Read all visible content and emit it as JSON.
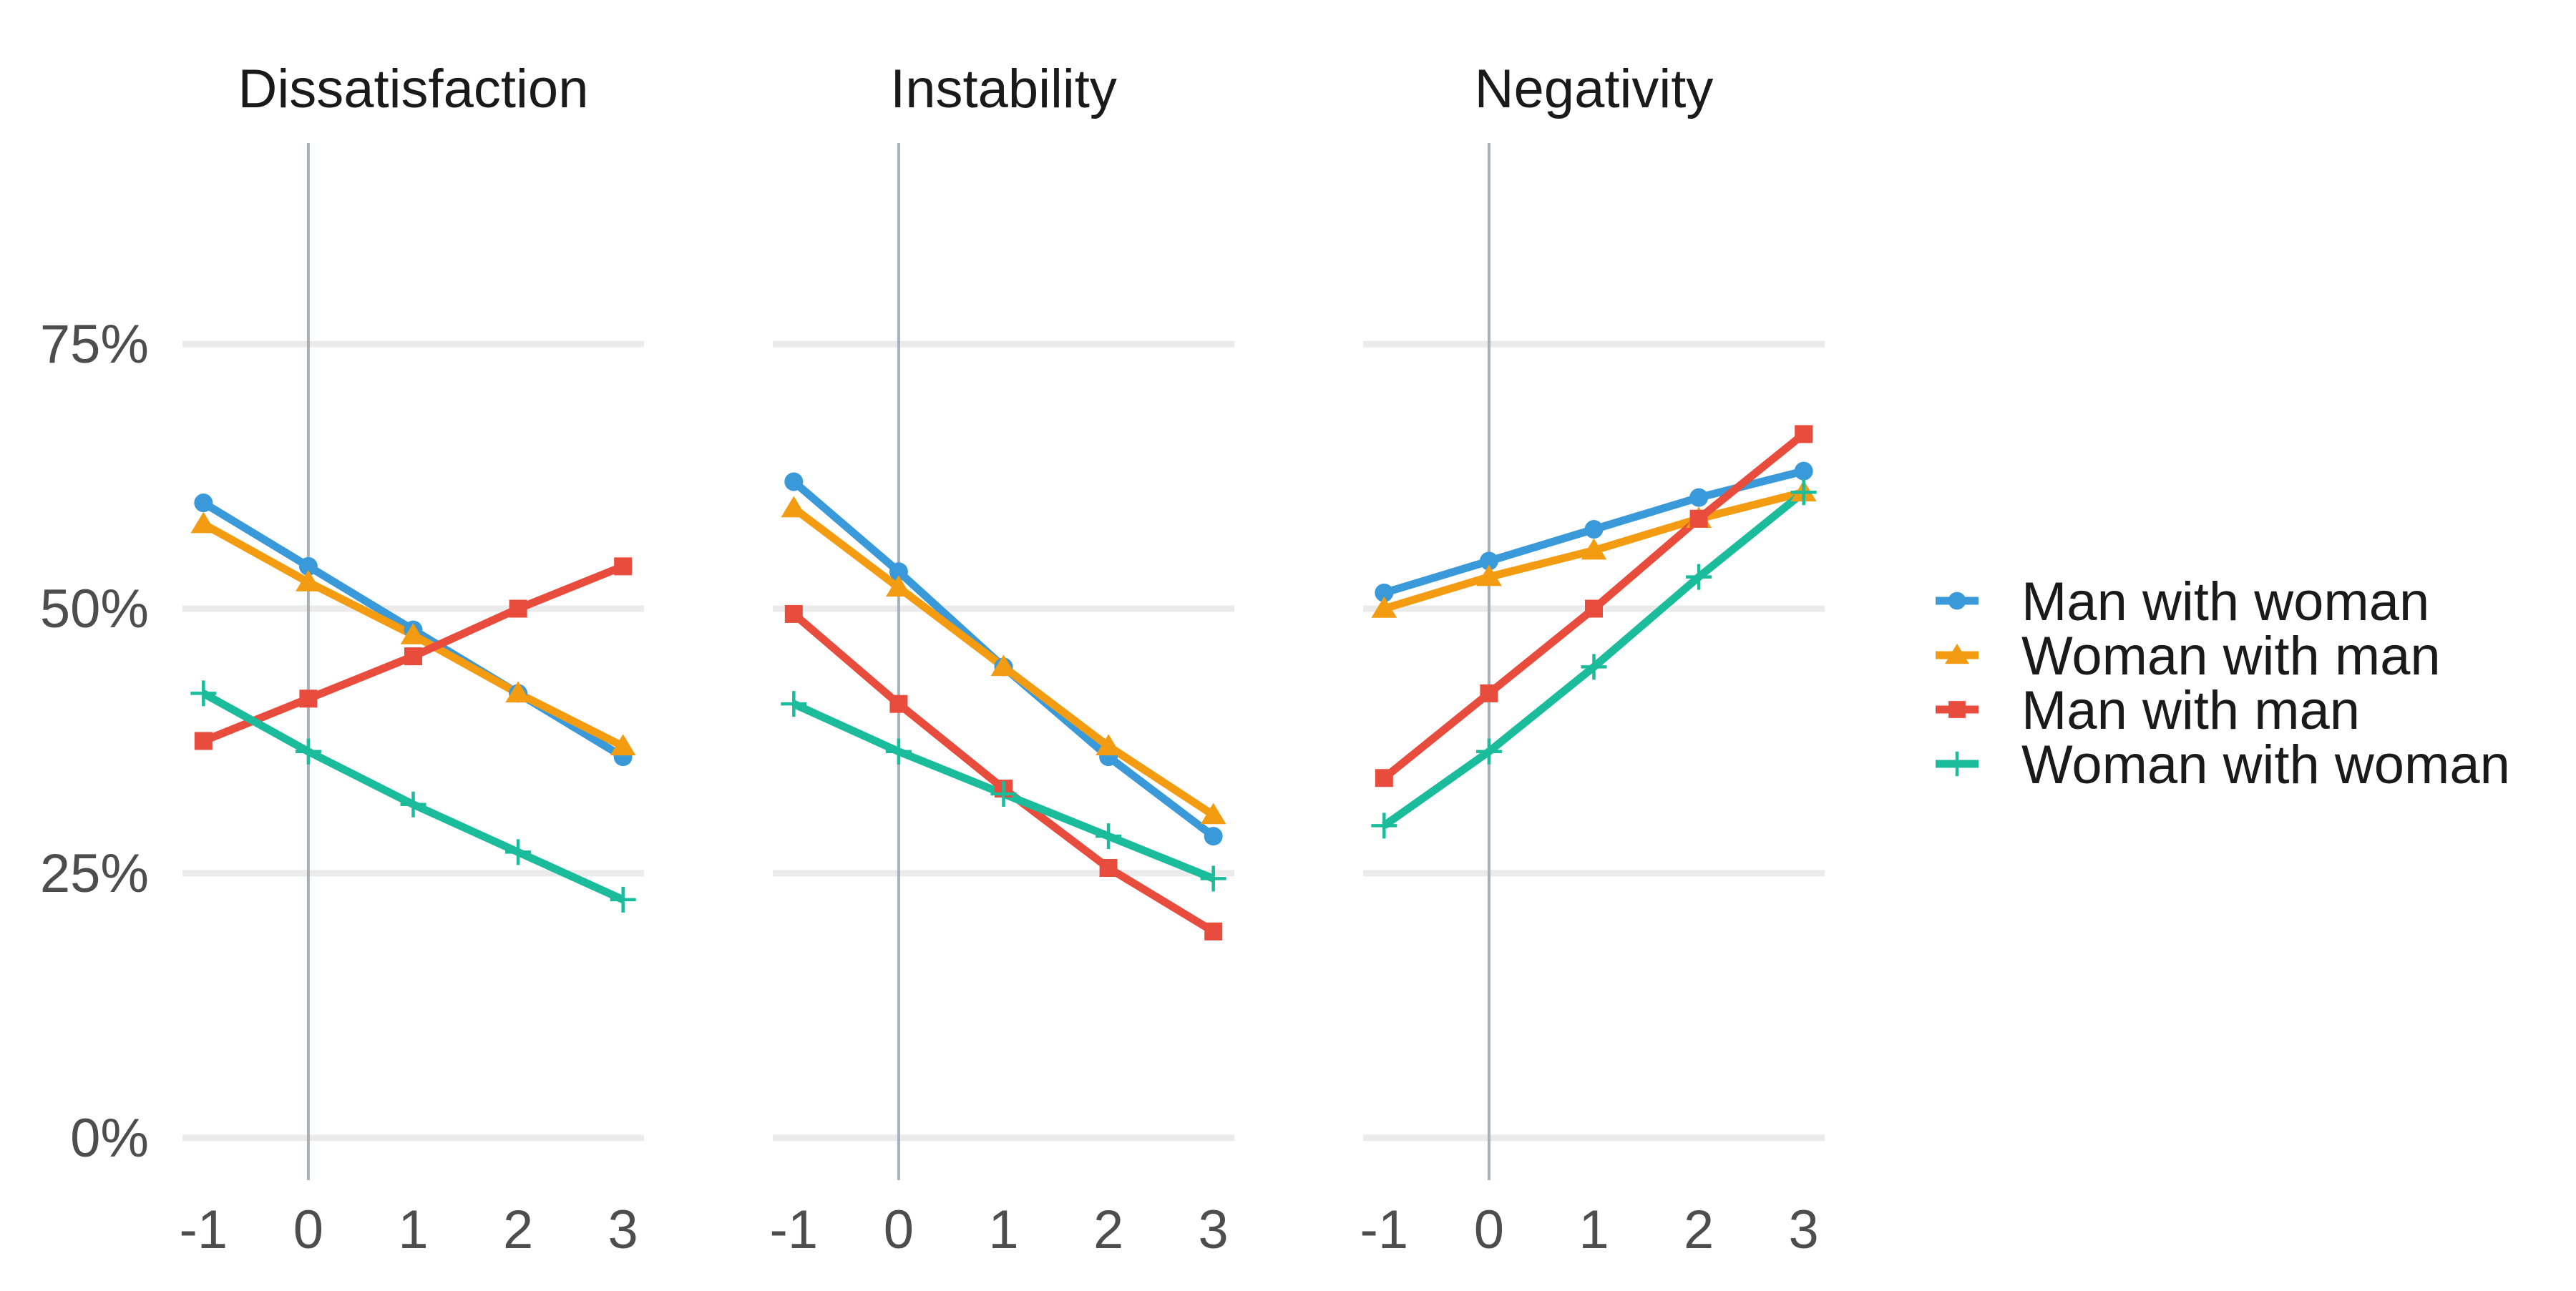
{
  "chart_data": {
    "type": "line",
    "facet_titles": [
      "Dissatisfaction",
      "Instability",
      "Negativity"
    ],
    "x": [
      -1,
      0,
      1,
      2,
      3
    ],
    "x_tick_labels": [
      "-1",
      "0",
      "1",
      "2",
      "3"
    ],
    "y_ticks": [
      0,
      0.25,
      0.5,
      0.75
    ],
    "y_tick_labels": [
      "0%",
      "25%",
      "50%",
      "75%"
    ],
    "ylim": [
      -0.04,
      0.94
    ],
    "xlim": [
      -1.2,
      3.2
    ],
    "reference_line_x": 0,
    "grid": "horizontal major",
    "legend_position": "right",
    "xlabel": "",
    "ylabel": "",
    "series": [
      {
        "name": "Man with woman",
        "color": "#3a9ad9",
        "marker": "circle",
        "values": [
          [
            0.6,
            0.54,
            0.48,
            0.42,
            0.36
          ],
          [
            0.62,
            0.535,
            0.445,
            0.36,
            0.285
          ],
          [
            0.515,
            0.545,
            0.575,
            0.605,
            0.63
          ]
        ]
      },
      {
        "name": "Woman with man",
        "color": "#f39c12",
        "marker": "triangle",
        "values": [
          [
            0.58,
            0.525,
            0.475,
            0.42,
            0.37
          ],
          [
            0.595,
            0.52,
            0.445,
            0.37,
            0.305
          ],
          [
            0.5,
            0.53,
            0.555,
            0.585,
            0.61
          ]
        ]
      },
      {
        "name": "Man with man",
        "color": "#e74c3c",
        "marker": "square",
        "values": [
          [
            0.375,
            0.415,
            0.455,
            0.5,
            0.54
          ],
          [
            0.495,
            0.41,
            0.33,
            0.255,
            0.195
          ],
          [
            0.34,
            0.42,
            0.5,
            0.585,
            0.665
          ]
        ]
      },
      {
        "name": "Woman with woman",
        "color": "#1abc9c",
        "marker": "cross",
        "values": [
          [
            0.42,
            0.365,
            0.315,
            0.27,
            0.225
          ],
          [
            0.41,
            0.365,
            0.325,
            0.285,
            0.245
          ],
          [
            0.295,
            0.365,
            0.445,
            0.53,
            0.61
          ]
        ]
      }
    ]
  }
}
